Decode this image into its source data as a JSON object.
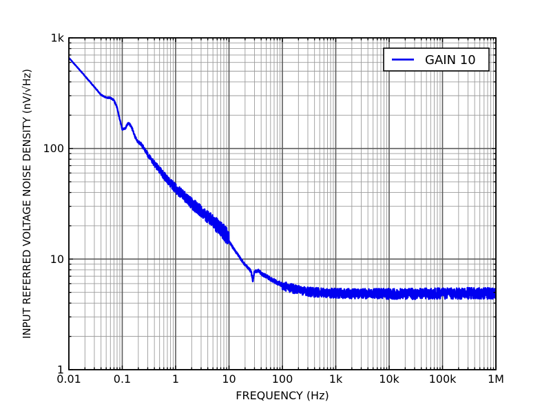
{
  "chart_data": {
    "type": "line",
    "title": "",
    "xlabel": "FREQUENCY (Hz)",
    "ylabel": "INPUT REFERRED VOLTAGE NOISE DENSITY (nV/√Hz)",
    "x_scale": "log",
    "y_scale": "log",
    "xlim": [
      0.01,
      1000000
    ],
    "ylim": [
      1,
      1000
    ],
    "grid": "both",
    "legend_position": "upper right",
    "legend": [
      "GAIN 10"
    ],
    "x_ticks": [
      {
        "value": 0.01,
        "label": "0.01"
      },
      {
        "value": 0.1,
        "label": "0.1"
      },
      {
        "value": 1,
        "label": "1"
      },
      {
        "value": 10,
        "label": "10"
      },
      {
        "value": 100,
        "label": "100"
      },
      {
        "value": 1000,
        "label": "1k"
      },
      {
        "value": 10000,
        "label": "10k"
      },
      {
        "value": 100000,
        "label": "100k"
      },
      {
        "value": 1000000,
        "label": "1M"
      }
    ],
    "y_ticks": [
      {
        "value": 1,
        "label": "1"
      },
      {
        "value": 10,
        "label": "10"
      },
      {
        "value": 100,
        "label": "100"
      },
      {
        "value": 1000,
        "label": "1k"
      }
    ],
    "series": [
      {
        "name": "GAIN 10",
        "units": "nV/√Hz vs Hz",
        "points": [
          [
            0.01,
            660
          ],
          [
            0.015,
            530
          ],
          [
            0.02,
            452
          ],
          [
            0.03,
            360
          ],
          [
            0.04,
            306
          ],
          [
            0.05,
            288
          ],
          [
            0.06,
            287
          ],
          [
            0.07,
            272
          ],
          [
            0.08,
            235
          ],
          [
            0.09,
            182
          ],
          [
            0.1,
            149
          ],
          [
            0.115,
            153
          ],
          [
            0.13,
            171
          ],
          [
            0.15,
            156
          ],
          [
            0.17,
            131
          ],
          [
            0.195,
            114
          ],
          [
            0.22,
            112
          ],
          [
            0.25,
            101
          ],
          [
            0.3,
            88
          ],
          [
            0.4,
            73
          ],
          [
            0.5,
            64
          ],
          [
            0.7,
            52
          ],
          [
            1.0,
            43.5
          ],
          [
            1.5,
            36.5
          ],
          [
            2.0,
            32
          ],
          [
            3.0,
            27
          ],
          [
            4.0,
            24
          ],
          [
            5.0,
            21.8
          ],
          [
            7.0,
            18.8
          ],
          [
            8.5,
            17
          ],
          [
            10,
            14.6
          ],
          [
            11,
            13.4
          ],
          [
            12,
            12.6
          ],
          [
            14,
            11.3
          ],
          [
            16,
            10.3
          ],
          [
            18,
            9.5
          ],
          [
            20,
            8.9
          ],
          [
            23,
            8.3
          ],
          [
            26,
            7.7
          ],
          [
            28,
            6.4
          ],
          [
            30,
            7.8
          ],
          [
            33,
            7.7
          ],
          [
            36,
            7.9
          ],
          [
            40,
            7.4
          ],
          [
            50,
            7.0
          ],
          [
            60,
            6.6
          ],
          [
            80,
            6.15
          ],
          [
            100,
            5.8
          ],
          [
            130,
            5.55
          ],
          [
            170,
            5.35
          ],
          [
            250,
            5.15
          ],
          [
            400,
            5.0
          ],
          [
            700,
            4.95
          ],
          [
            1000,
            4.9
          ],
          [
            3000,
            4.87
          ],
          [
            10000,
            4.85
          ],
          [
            30000,
            4.85
          ],
          [
            100000,
            4.88
          ],
          [
            300000,
            4.9
          ],
          [
            1000000,
            4.9
          ]
        ],
        "noise_envelope_decades": [
          [
            0.01,
            0.002
          ],
          [
            0.04,
            0.004
          ],
          [
            0.1,
            0.008
          ],
          [
            0.2,
            0.012
          ],
          [
            0.3,
            0.02
          ],
          [
            0.5,
            0.032
          ],
          [
            1,
            0.042
          ],
          [
            2,
            0.05
          ],
          [
            4,
            0.058
          ],
          [
            7,
            0.068
          ],
          [
            9.9,
            0.078
          ],
          [
            10,
            0.01
          ],
          [
            20,
            0.01
          ],
          [
            35,
            0.014
          ],
          [
            70,
            0.018
          ],
          [
            99,
            0.02
          ],
          [
            100,
            0.04
          ],
          [
            300,
            0.042
          ],
          [
            1000,
            0.044
          ],
          [
            10000,
            0.048
          ],
          [
            100000,
            0.05
          ],
          [
            1000000,
            0.052
          ]
        ],
        "samples_per_decade": 350,
        "seed": 12345
      }
    ],
    "colors": {
      "curve": "#0000f0",
      "grid_major": "#5a5a5a",
      "grid_minor": "#9a9a9a",
      "frame": "#000000",
      "background": "#ffffff",
      "legend_border": "#000000",
      "legend_fill": "#ffffff"
    }
  }
}
